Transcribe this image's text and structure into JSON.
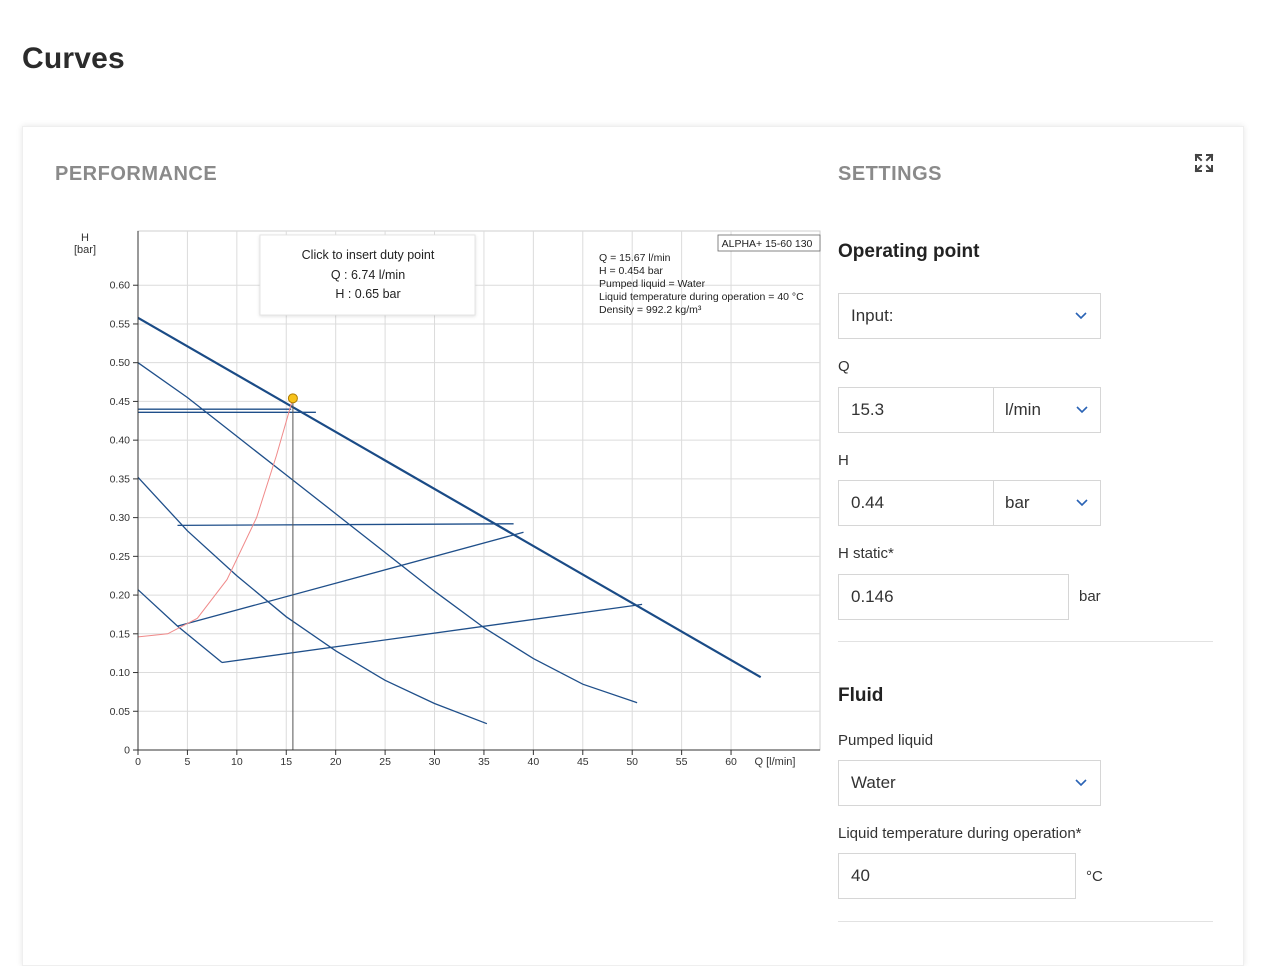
{
  "page": {
    "title": "Curves"
  },
  "performance": {
    "label": "PERFORMANCE"
  },
  "settings": {
    "label": "SETTINGS",
    "expand_icon": "expand-arrows-icon",
    "operating_point": {
      "heading": "Operating point",
      "input_select": "Input:",
      "q_label": "Q",
      "q_value": "15.3",
      "q_unit": "l/min",
      "h_label": "H",
      "h_value": "0.44",
      "h_unit": "bar",
      "hstatic_label": "H static*",
      "hstatic_value": "0.146",
      "hstatic_unit": "bar"
    },
    "fluid": {
      "heading": "Fluid",
      "pumped_label": "Pumped liquid",
      "pumped_value": "Water",
      "temp_label": "Liquid temperature during operation*",
      "temp_value": "40",
      "temp_unit": "°C"
    }
  },
  "chart_data": {
    "type": "line",
    "xlabel": "Q [l/min]",
    "ylabel_top": "H",
    "ylabel_unit": "[bar]",
    "xlim": [
      0,
      69
    ],
    "ylim": [
      0,
      0.67
    ],
    "xticks": [
      0,
      5,
      10,
      15,
      20,
      25,
      30,
      35,
      40,
      45,
      50,
      55,
      60
    ],
    "xtick_labels": [
      "0",
      "5",
      "10",
      "15",
      "20",
      "25",
      "30",
      "35",
      "40",
      "45",
      "50",
      "55",
      "60"
    ],
    "yticks": [
      0,
      0.05,
      0.1,
      0.15,
      0.2,
      0.25,
      0.3,
      0.35,
      0.4,
      0.45,
      0.5,
      0.55,
      0.6
    ],
    "ytick_labels": [
      "0",
      "0.05",
      "0.10",
      "0.15",
      "0.20",
      "0.25",
      "0.30",
      "0.35",
      "0.40",
      "0.45",
      "0.50",
      "0.55",
      "0.60"
    ],
    "grid": true,
    "model_label": "ALPHA+ 15-60 130",
    "info_lines": [
      "Q = 15.67 l/min",
      "H = 0.454 bar",
      "Pumped liquid = Water",
      "Liquid temperature during operation = 40 °C",
      "Density = 992.2 kg/m³"
    ],
    "tooltip": {
      "title": "Click to insert duty point",
      "q": "Q : 6.74 l/min",
      "h": "H : 0.65 bar"
    },
    "duty_point": {
      "x": 15.67,
      "y": 0.454
    },
    "series": [
      {
        "style": "main",
        "points": [
          [
            0,
            0.558
          ],
          [
            63,
            0.094
          ]
        ]
      },
      {
        "style": "curve",
        "points": [
          [
            0,
            0.5
          ],
          [
            5,
            0.455
          ],
          [
            10,
            0.405
          ],
          [
            15,
            0.355
          ],
          [
            20,
            0.305
          ],
          [
            25,
            0.255
          ],
          [
            30,
            0.205
          ],
          [
            35,
            0.158
          ],
          [
            40,
            0.118
          ],
          [
            45,
            0.085
          ],
          [
            50.5,
            0.061
          ]
        ]
      },
      {
        "style": "curve",
        "points": [
          [
            0,
            0.352
          ],
          [
            5,
            0.283
          ],
          [
            10,
            0.225
          ],
          [
            15,
            0.172
          ],
          [
            20,
            0.128
          ],
          [
            25,
            0.09
          ],
          [
            30,
            0.06
          ],
          [
            35.3,
            0.034
          ]
        ]
      },
      {
        "style": "curve",
        "points": [
          [
            0,
            0.207
          ],
          [
            4,
            0.16
          ],
          [
            8.5,
            0.113
          ]
        ]
      },
      {
        "style": "curve",
        "points": [
          [
            0,
            0.436
          ],
          [
            18,
            0.436
          ]
        ]
      },
      {
        "style": "curve",
        "points": [
          [
            0,
            0.44
          ],
          [
            15.5,
            0.44
          ]
        ]
      },
      {
        "style": "curve",
        "points": [
          [
            4,
            0.29
          ],
          [
            38,
            0.292
          ]
        ]
      },
      {
        "style": "curve",
        "points": [
          [
            4,
            0.16
          ],
          [
            39,
            0.281
          ]
        ]
      },
      {
        "style": "curve",
        "points": [
          [
            8.5,
            0.113
          ],
          [
            51,
            0.188
          ]
        ]
      },
      {
        "style": "system",
        "points": [
          [
            0,
            0.146
          ],
          [
            3,
            0.15
          ],
          [
            6,
            0.17
          ],
          [
            9,
            0.22
          ],
          [
            12,
            0.3
          ],
          [
            14,
            0.38
          ],
          [
            15.67,
            0.454
          ]
        ]
      },
      {
        "style": "guide",
        "points": [
          [
            15.67,
            0.454
          ],
          [
            15.67,
            0
          ]
        ]
      }
    ]
  }
}
